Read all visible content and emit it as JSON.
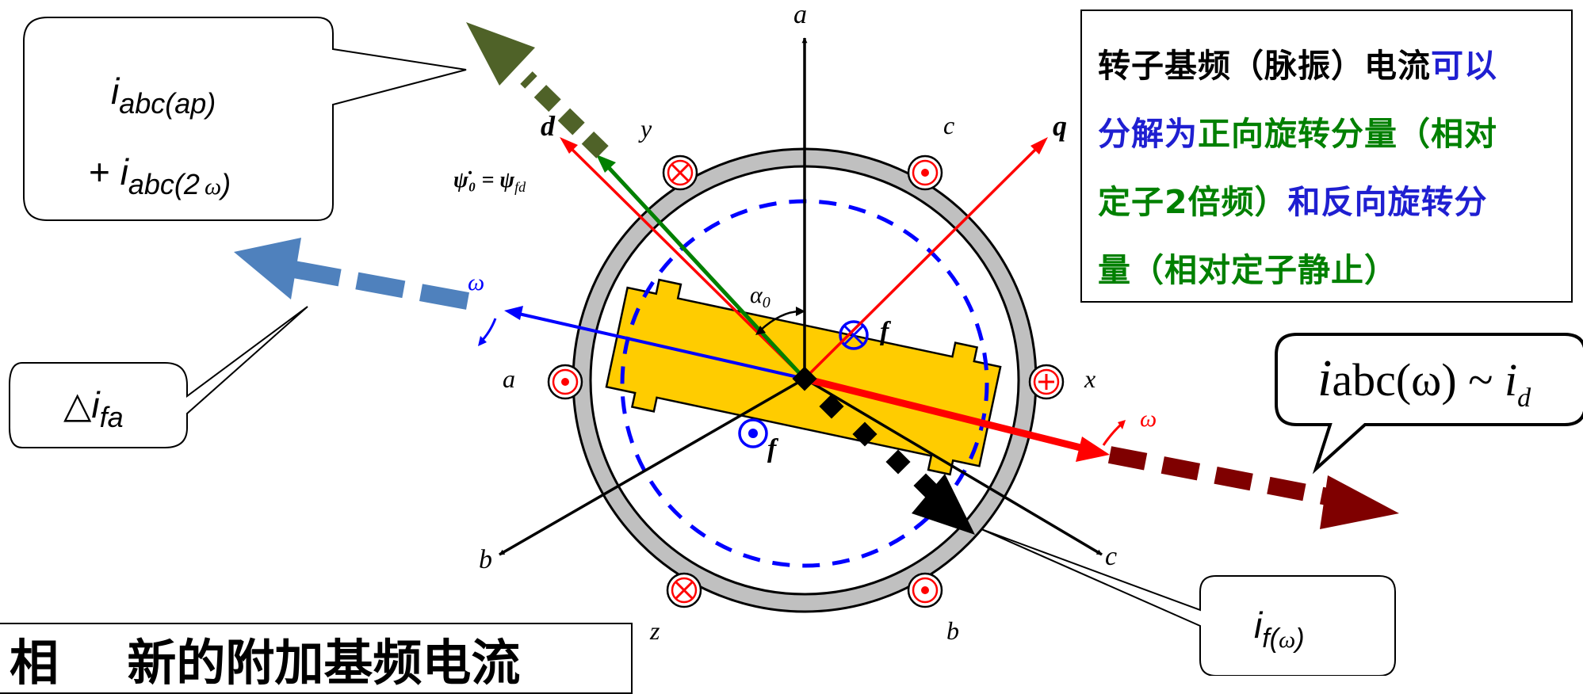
{
  "callouts": {
    "top_left_line1": "i",
    "top_left_line1_sub": "abc(ap)",
    "top_left_line2_prefix": "+ ",
    "top_left_line2": "i",
    "top_left_line2_sub": "abc(2",
    "top_left_line2_omega": "ω",
    "top_left_line2_close": ")",
    "delta_prefix": "△",
    "delta_i": "i",
    "delta_sub": "fa",
    "right_i": "i",
    "right_text": "abc(ω) ~ ",
    "right_id": "i",
    "right_id_sub": "d",
    "bottom_right_i": "i",
    "bottom_right_sub": "f(",
    "bottom_right_omega": "ω",
    "bottom_right_close": ")"
  },
  "info_box": {
    "line1_black": "转子基频（脉振）电流",
    "line1_blue": "可以",
    "line2_blue": "分解为",
    "line2_green": "正向旋转分量（相对",
    "line3_green": "定子2倍频）",
    "line3_blue": "和反向旋转分",
    "line4_green": "量（相对定子静止）"
  },
  "bottom_box_text": "相    新的附加基频电流",
  "labels": {
    "axis_a": "a",
    "axis_b": "b",
    "axis_c": "c",
    "q_axis": "q",
    "d_axis": "d",
    "slot_a": "a",
    "slot_b": "b",
    "slot_c": "c",
    "slot_x": "x",
    "slot_y": "y",
    "slot_z": "z",
    "psi_formula": "ψ̇₀ = ψ",
    "psi_sub": "fd",
    "alpha_main": "α",
    "alpha_sub": "0",
    "f_upper": "f",
    "f_lower": "f",
    "omega_blue": "ω",
    "omega_red": "ω"
  },
  "colors": {
    "black": "#000000",
    "red": "#ff0000",
    "blue": "#0000ff",
    "green": "#008000",
    "olive": "#4f6228",
    "steel_blue": "#4f81bd",
    "dark_red": "#7f0000",
    "stator_gray": "#c0c0c0",
    "rotor_yellow": "#ffcc00"
  }
}
